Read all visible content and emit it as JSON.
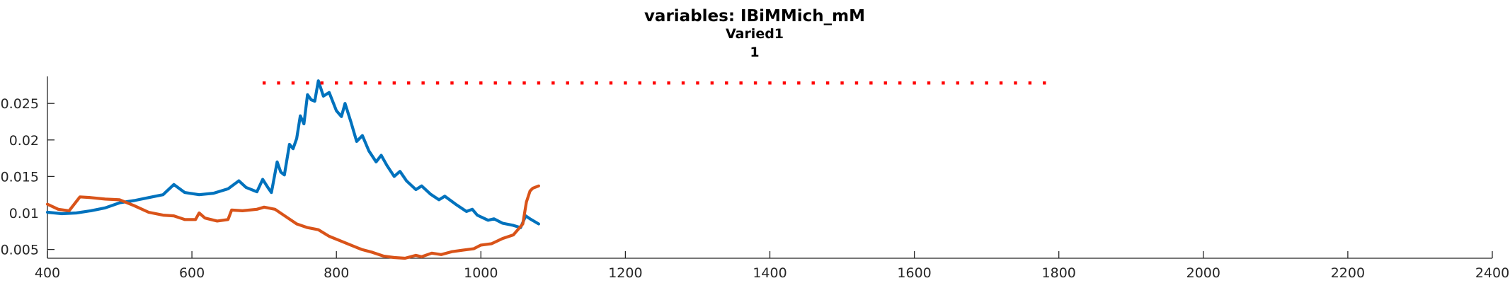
{
  "title": "variables: IBiMMich_mM",
  "subtitle": "Varied1",
  "subtitle2": "1",
  "colors": {
    "blue": "#0072BD",
    "orange": "#D95319",
    "marker": "#FF0000",
    "axis": "#262626"
  },
  "chart_data": {
    "type": "line",
    "title": "variables: IBiMMich_mM",
    "subtitle": [
      "Varied1",
      "1"
    ],
    "xlabel": "",
    "ylabel": "",
    "xlim": [
      400,
      2400
    ],
    "ylim": [
      0.0038,
      0.0287
    ],
    "grid": false,
    "xticks": [
      400,
      600,
      800,
      1000,
      1200,
      1400,
      1600,
      1800,
      2000,
      2200,
      2400
    ],
    "xtick_labels": [
      "400",
      "600",
      "800",
      "1000",
      "1200",
      "1400",
      "1600",
      "1800",
      "2000",
      "2200",
      "2400"
    ],
    "yticks": [
      0.005,
      0.01,
      0.015,
      0.02,
      0.025
    ],
    "ytick_labels": [
      "0.005",
      "0.01",
      "0.015",
      "0.02",
      "0.025"
    ],
    "marker_series": {
      "y": 0.0278,
      "x_start": 700,
      "x_end": 1790,
      "step": 20,
      "color": "#FF0000"
    },
    "series": [
      {
        "color": "#0072BD",
        "points": [
          [
            400,
            0.0101
          ],
          [
            420,
            0.0099
          ],
          [
            440,
            0.01
          ],
          [
            460,
            0.0103
          ],
          [
            480,
            0.0107
          ],
          [
            500,
            0.0114
          ],
          [
            520,
            0.0117
          ],
          [
            540,
            0.0121
          ],
          [
            560,
            0.0125
          ],
          [
            575,
            0.0139
          ],
          [
            590,
            0.0128
          ],
          [
            610,
            0.0125
          ],
          [
            630,
            0.0127
          ],
          [
            650,
            0.0133
          ],
          [
            665,
            0.0144
          ],
          [
            675,
            0.0135
          ],
          [
            690,
            0.0129
          ],
          [
            698,
            0.0146
          ],
          [
            705,
            0.0135
          ],
          [
            710,
            0.0128
          ],
          [
            718,
            0.017
          ],
          [
            723,
            0.0156
          ],
          [
            728,
            0.0152
          ],
          [
            735,
            0.0194
          ],
          [
            740,
            0.0188
          ],
          [
            745,
            0.0202
          ],
          [
            750,
            0.0233
          ],
          [
            755,
            0.0222
          ],
          [
            760,
            0.0262
          ],
          [
            765,
            0.0255
          ],
          [
            770,
            0.0253
          ],
          [
            775,
            0.0281
          ],
          [
            782,
            0.026
          ],
          [
            790,
            0.0265
          ],
          [
            800,
            0.024
          ],
          [
            807,
            0.0232
          ],
          [
            812,
            0.025
          ],
          [
            820,
            0.0225
          ],
          [
            828,
            0.0198
          ],
          [
            836,
            0.0206
          ],
          [
            845,
            0.0185
          ],
          [
            855,
            0.017
          ],
          [
            862,
            0.0179
          ],
          [
            870,
            0.0165
          ],
          [
            880,
            0.015
          ],
          [
            888,
            0.0157
          ],
          [
            897,
            0.0144
          ],
          [
            910,
            0.0132
          ],
          [
            918,
            0.0137
          ],
          [
            930,
            0.0126
          ],
          [
            942,
            0.0118
          ],
          [
            950,
            0.0123
          ],
          [
            965,
            0.0112
          ],
          [
            980,
            0.0102
          ],
          [
            988,
            0.0105
          ],
          [
            995,
            0.0097
          ],
          [
            1010,
            0.009
          ],
          [
            1018,
            0.0092
          ],
          [
            1030,
            0.0086
          ],
          [
            1045,
            0.0083
          ],
          [
            1055,
            0.008
          ],
          [
            1062,
            0.0096
          ],
          [
            1068,
            0.0092
          ],
          [
            1080,
            0.0085
          ]
        ]
      },
      {
        "color": "#D95319",
        "points": [
          [
            400,
            0.0112
          ],
          [
            415,
            0.0105
          ],
          [
            430,
            0.0103
          ],
          [
            445,
            0.0122
          ],
          [
            460,
            0.0121
          ],
          [
            480,
            0.0119
          ],
          [
            500,
            0.0118
          ],
          [
            520,
            0.011
          ],
          [
            540,
            0.0101
          ],
          [
            560,
            0.0097
          ],
          [
            575,
            0.0096
          ],
          [
            590,
            0.0091
          ],
          [
            605,
            0.0091
          ],
          [
            610,
            0.01
          ],
          [
            618,
            0.0093
          ],
          [
            635,
            0.0089
          ],
          [
            650,
            0.0091
          ],
          [
            655,
            0.0104
          ],
          [
            670,
            0.0103
          ],
          [
            690,
            0.0105
          ],
          [
            700,
            0.0108
          ],
          [
            715,
            0.0105
          ],
          [
            730,
            0.0095
          ],
          [
            745,
            0.0085
          ],
          [
            760,
            0.008
          ],
          [
            775,
            0.0077
          ],
          [
            790,
            0.0068
          ],
          [
            805,
            0.0062
          ],
          [
            820,
            0.0056
          ],
          [
            835,
            0.005
          ],
          [
            850,
            0.0046
          ],
          [
            865,
            0.0041
          ],
          [
            880,
            0.0039
          ],
          [
            895,
            0.0038
          ],
          [
            910,
            0.0042
          ],
          [
            918,
            0.004
          ],
          [
            932,
            0.0045
          ],
          [
            945,
            0.0043
          ],
          [
            960,
            0.0047
          ],
          [
            975,
            0.0049
          ],
          [
            990,
            0.0051
          ],
          [
            1000,
            0.0056
          ],
          [
            1015,
            0.0058
          ],
          [
            1030,
            0.0065
          ],
          [
            1045,
            0.007
          ],
          [
            1058,
            0.0085
          ],
          [
            1063,
            0.0115
          ],
          [
            1068,
            0.013
          ],
          [
            1072,
            0.0134
          ],
          [
            1080,
            0.0137
          ]
        ]
      }
    ]
  }
}
